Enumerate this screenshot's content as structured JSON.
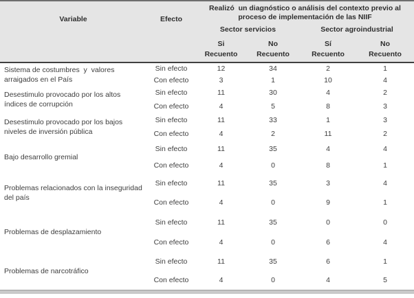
{
  "table": {
    "header": {
      "spanning_title": "Realizó  un diagnóstico o análisis del contexto previo al proceso de implementación de las NIIF",
      "variable_label": "Variable",
      "efecto_label": "Efecto",
      "sector_groups": [
        {
          "label": "Sector servicios"
        },
        {
          "label": "Sector agroindustrial"
        }
      ],
      "subcolumns": [
        {
          "answer": "Si",
          "measure": "Recuento"
        },
        {
          "answer": "No",
          "measure": "Recuento"
        },
        {
          "answer": "Sí",
          "measure": "Recuento"
        },
        {
          "answer": "No",
          "measure": "Recuento"
        }
      ]
    },
    "rows": [
      {
        "variable": "Sistema de costumbres  y  valores arraigados en el País",
        "effects": [
          {
            "label": "Sin efecto",
            "values": [
              12,
              34,
              2,
              1
            ]
          },
          {
            "label": "Con efecto",
            "values": [
              3,
              1,
              10,
              4
            ]
          }
        ]
      },
      {
        "variable": "Desestimulo provocado por los altos índices de corrupción",
        "effects": [
          {
            "label": "Sin efecto",
            "values": [
              11,
              30,
              4,
              2
            ]
          },
          {
            "label": "Con efecto",
            "values": [
              4,
              5,
              8,
              3
            ]
          }
        ]
      },
      {
        "variable": "Desestimulo provocado por los bajos niveles de inversión pública",
        "effects": [
          {
            "label": "Sin efecto",
            "values": [
              11,
              33,
              1,
              3
            ]
          },
          {
            "label": "Con efecto",
            "values": [
              4,
              2,
              11,
              2
            ]
          }
        ]
      },
      {
        "variable": "Bajo desarrollo gremial",
        "effects": [
          {
            "label": "Sin efecto",
            "values": [
              11,
              35,
              4,
              4
            ]
          },
          {
            "label": "Con efecto",
            "values": [
              4,
              0,
              8,
              1
            ]
          }
        ]
      },
      {
        "variable": "Problemas relacionados con la inseguridad del país",
        "effects": [
          {
            "label": "Sin efecto",
            "values": [
              11,
              35,
              3,
              4
            ]
          },
          {
            "label": "Con efecto",
            "values": [
              4,
              0,
              9,
              1
            ]
          }
        ]
      },
      {
        "variable": "Problemas de desplazamiento",
        "effects": [
          {
            "label": "Sin efecto",
            "values": [
              11,
              35,
              0,
              0
            ]
          },
          {
            "label": "Con efecto",
            "values": [
              4,
              0,
              6,
              4
            ]
          }
        ]
      },
      {
        "variable": "Problemas de narcotráfico",
        "effects": [
          {
            "label": "Sin efecto",
            "values": [
              11,
              35,
              6,
              1
            ]
          },
          {
            "label": "Con efecto",
            "values": [
              4,
              0,
              4,
              5
            ]
          }
        ]
      }
    ]
  }
}
